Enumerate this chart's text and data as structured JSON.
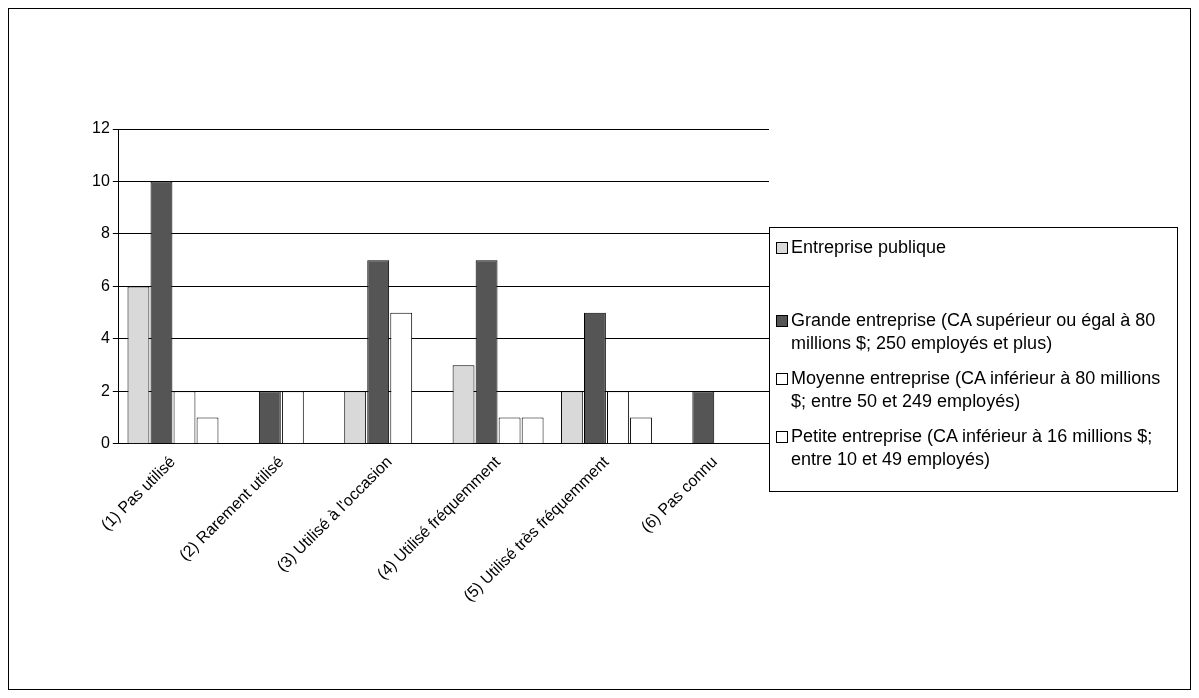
{
  "chart_data": {
    "type": "bar",
    "categories": [
      "(1) Pas utilisé",
      "(2) Rarement utilisé",
      "(3) Utilisé à l'occasion",
      "(4) Utilisé fréquemment",
      "(5) Utilisé très fréquemment",
      "(6) Pas connu"
    ],
    "series": [
      {
        "name": "Entreprise publique",
        "color": "#d9d9d9",
        "values": [
          6,
          null,
          2,
          3,
          2,
          null
        ]
      },
      {
        "name": "Grande entreprise (CA supérieur ou égal à 80 millions $; 250 employés et plus)",
        "color": "#555555",
        "values": [
          10,
          2,
          7,
          7,
          5,
          2
        ]
      },
      {
        "name": "Moyenne entreprise (CA inférieur à 80 millions $; entre 50 et 249 employés)",
        "color": "#ffffff",
        "values": [
          2,
          2,
          5,
          1,
          2,
          null
        ]
      },
      {
        "name": "Petite entreprise (CA inférieur à 16 millions $; entre 10 et 49 employés)",
        "color": "#ffffff",
        "values": [
          1,
          null,
          null,
          1,
          1,
          null
        ]
      }
    ],
    "ylim": [
      0,
      12
    ],
    "yticks": [
      0,
      2,
      4,
      6,
      8,
      10,
      12
    ],
    "grid": "y",
    "legend": "right"
  }
}
